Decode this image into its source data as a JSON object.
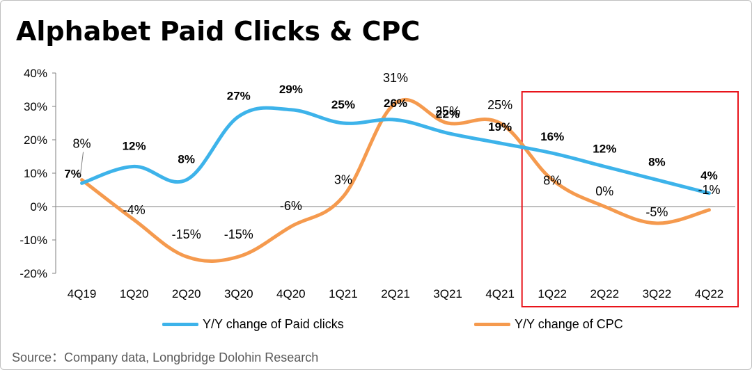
{
  "title": "Alphabet Paid Clicks & CPC",
  "source": "Source：Company data,  Longbridge Dolohin Research",
  "colors": {
    "paid_clicks": "#3DB3EA",
    "cpc": "#F59A4E",
    "highlight_box": "#E8141B",
    "zero_line": "#999999",
    "axis": "#7f7f7f"
  },
  "chart_data": {
    "type": "line",
    "categories": [
      "4Q19",
      "1Q20",
      "2Q20",
      "3Q20",
      "4Q20",
      "1Q21",
      "2Q21",
      "3Q21",
      "4Q21",
      "1Q22",
      "2Q22",
      "3Q22",
      "4Q22"
    ],
    "y_tick_labels": [
      "40%",
      "30%",
      "20%",
      "10%",
      "0%",
      "-10%",
      "-20%"
    ],
    "ylim": [
      -20,
      40
    ],
    "grid": false,
    "legend_position": "bottom",
    "series": [
      {
        "name": "Y/Y change of Paid clicks",
        "values": [
          7,
          12,
          8,
          27,
          29,
          25,
          26,
          22,
          19,
          16,
          12,
          8,
          4
        ],
        "labels": [
          "7%",
          "12%",
          "8%",
          "27%",
          "29%",
          "25%",
          "26%",
          "22%",
          "19%",
          "16%",
          "12%",
          "8%",
          "4%"
        ]
      },
      {
        "name": "Y/Y change of CPC",
        "values": [
          8,
          -4,
          -15,
          -15,
          -6,
          3,
          31,
          25,
          25,
          8,
          0,
          -5,
          -1
        ],
        "labels": [
          "8%",
          "-4%",
          "-15%",
          "-15%",
          "-6%",
          "3%",
          "31%",
          "25%",
          "25%",
          "8%",
          "0%",
          "-5%",
          "-1%"
        ]
      }
    ],
    "highlight_range": [
      "1Q22",
      "4Q22"
    ]
  }
}
